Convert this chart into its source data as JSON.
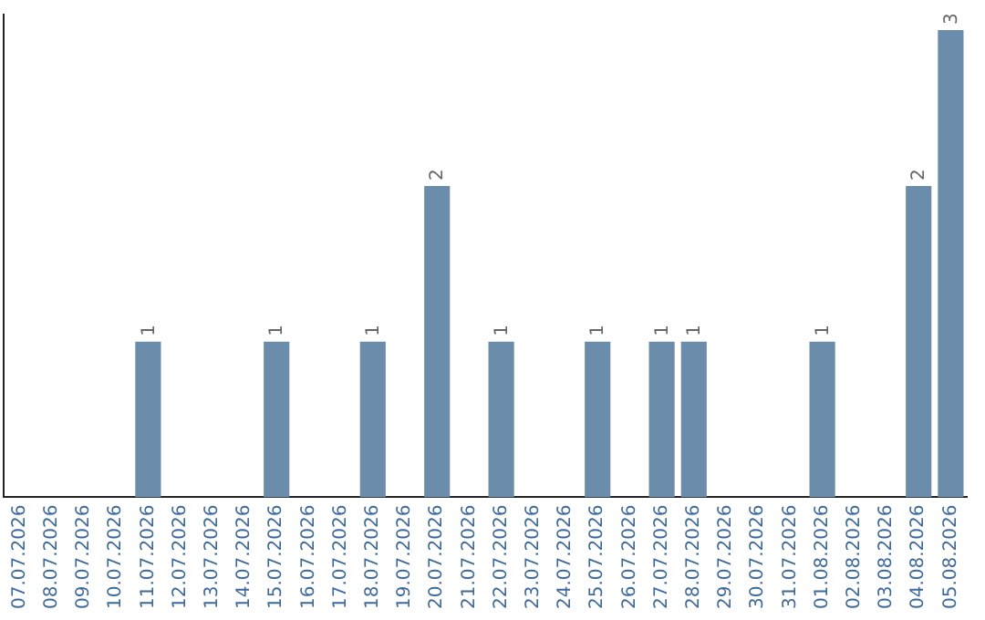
{
  "chart_data": {
    "type": "bar",
    "categories": [
      "07.07.2026",
      "08.07.2026",
      "09.07.2026",
      "10.07.2026",
      "11.07.2026",
      "12.07.2026",
      "13.07.2026",
      "14.07.2026",
      "15.07.2026",
      "16.07.2026",
      "17.07.2026",
      "18.07.2026",
      "19.07.2026",
      "20.07.2026",
      "21.07.2026",
      "22.07.2026",
      "23.07.2026",
      "24.07.2026",
      "25.07.2026",
      "26.07.2026",
      "27.07.2026",
      "28.07.2026",
      "29.07.2026",
      "30.07.2026",
      "31.07.2026",
      "01.08.2026",
      "02.08.2026",
      "03.08.2026",
      "04.08.2026",
      "05.08.2026"
    ],
    "values": [
      0,
      0,
      0,
      0,
      1,
      0,
      0,
      0,
      1,
      0,
      0,
      1,
      0,
      2,
      0,
      1,
      0,
      0,
      1,
      0,
      1,
      1,
      0,
      0,
      0,
      1,
      0,
      0,
      2,
      3
    ],
    "value_labels": [
      null,
      null,
      null,
      null,
      "1",
      null,
      null,
      null,
      "1",
      null,
      null,
      "1",
      null,
      "2",
      null,
      "1",
      null,
      null,
      "1",
      null,
      "1",
      "1",
      null,
      null,
      null,
      "1",
      null,
      null,
      "2",
      "3"
    ],
    "color": "#6b8dab",
    "ylim": [
      0,
      3.1
    ],
    "tick_labels": "x",
    "grid": false,
    "legend": false
  }
}
